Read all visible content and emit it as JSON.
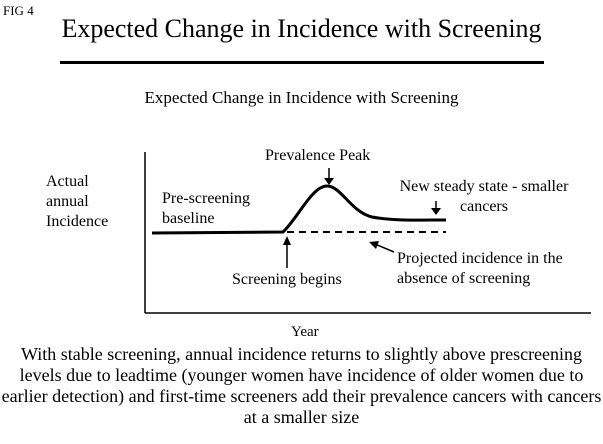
{
  "figure_label": "FIG 4",
  "title": "Expected Change in Incidence with Screening",
  "subtitle": "Expected Change in Incidence with Screening",
  "diagram": {
    "y_axis_label": "Actual annual Incidence",
    "x_axis_label": "Year",
    "annotations": {
      "baseline": "Pre-screening baseline",
      "peak": "Prevalence Peak",
      "steady_state": "New steady state  - smaller cancers",
      "projected": "Projected incidence in the absence of screening",
      "screening_begins": "Screening begins"
    }
  },
  "caption": "With stable screening, annual incidence returns to slightly above prescreening levels due to leadtime (younger women have incidence of older women due to earlier detection) and first-time screeners add their prevalence cancers with cancers at a smaller size"
}
